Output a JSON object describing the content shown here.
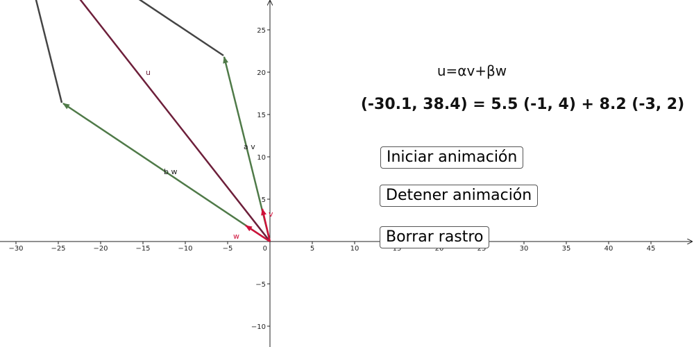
{
  "graphics": {
    "x_axis_ticks": [
      {
        "value": -30,
        "label": "−30"
      },
      {
        "value": -25,
        "label": "−25"
      },
      {
        "value": -20,
        "label": "−20"
      },
      {
        "value": -15,
        "label": "−15"
      },
      {
        "value": -10,
        "label": "−10"
      },
      {
        "value": -5,
        "label": "−5"
      },
      {
        "value": 0,
        "label": "0"
      },
      5,
      10,
      15,
      20,
      25,
      30,
      35,
      40,
      45
    ],
    "y_axis_ticks": [
      25,
      20,
      15,
      10,
      5,
      {
        "value": -5,
        "label": "−5"
      },
      {
        "value": -10,
        "label": "−10"
      }
    ],
    "vector_labels": {
      "u": "u",
      "av": "a v",
      "bw": "b w",
      "v": "v",
      "w": "w"
    },
    "formula": "u=αv+βw",
    "equation": "(-30.1, 38.4) = 5.5 (-1, 4) + 8.2 (-3, 2)"
  },
  "buttons": [
    "Iniciar animación",
    "Detener animación",
    "Borrar rastro"
  ]
}
